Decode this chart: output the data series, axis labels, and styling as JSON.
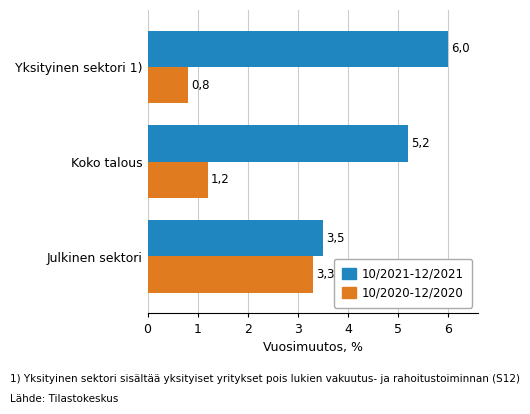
{
  "categories": [
    "Julkinen sektori",
    "Koko talous",
    "Yksityinen sektori 1)"
  ],
  "series": [
    {
      "label": "10/2021-12/2021",
      "values": [
        3.5,
        5.2,
        6.0
      ],
      "color": "#1F86BF"
    },
    {
      "label": "10/2020-12/2020",
      "values": [
        3.3,
        1.2,
        0.8
      ],
      "color": "#E07B20"
    }
  ],
  "xlabel": "Vuosimuutos, %",
  "xlim": [
    0,
    6.6
  ],
  "xticks": [
    0,
    1,
    2,
    3,
    4,
    5,
    6
  ],
  "footnote1": "1) Yksityinen sektori sisältää yksityiset yritykset pois lukien vakuutus- ja rahoitustoiminnan (S12)",
  "footnote2": "Lähde: Tilastokeskus",
  "bar_height": 0.38,
  "label_fontsize": 8.5,
  "tick_fontsize": 9,
  "axis_label_fontsize": 9,
  "legend_fontsize": 8.5,
  "footnote_fontsize": 7.5,
  "background_color": "#FFFFFF",
  "grid_color": "#CCCCCC"
}
